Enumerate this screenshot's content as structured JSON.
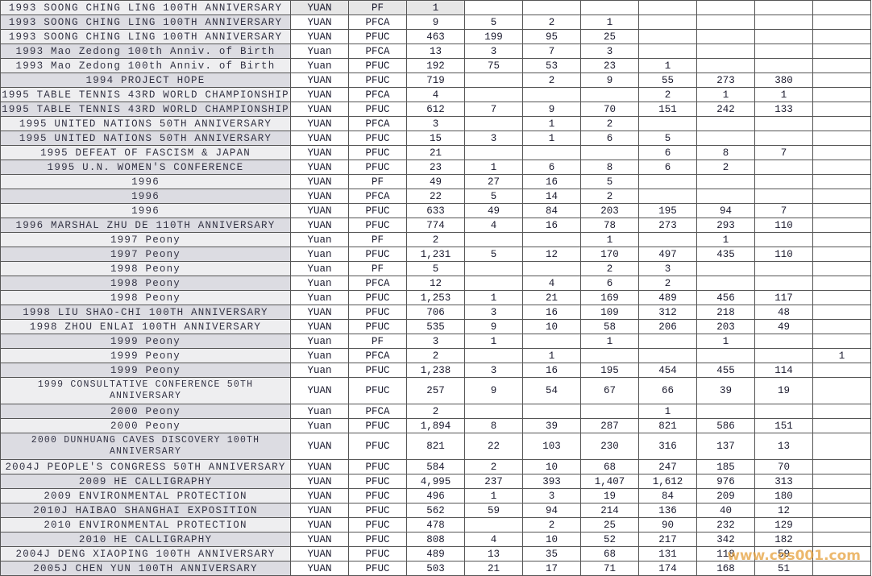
{
  "table": {
    "rows": [
      [
        "1993 SOONG CHING LING 100TH ANNIVERSARY",
        "YUAN",
        "PF",
        1,
        null,
        null,
        null,
        null,
        null,
        null,
        null
      ],
      [
        "1993 SOONG CHING LING 100TH ANNIVERSARY",
        "YUAN",
        "PFCA",
        9,
        5,
        2,
        1,
        null,
        null,
        null,
        null
      ],
      [
        "1993 SOONG CHING LING 100TH ANNIVERSARY",
        "YUAN",
        "PFUC",
        463,
        199,
        95,
        25,
        null,
        null,
        null,
        null
      ],
      [
        "1993 Mao Zedong 100th Anniv. of Birth",
        "Yuan",
        "PFCA",
        13,
        3,
        7,
        3,
        null,
        null,
        null,
        null
      ],
      [
        "1993 Mao Zedong 100th Anniv. of Birth",
        "Yuan",
        "PFUC",
        192,
        75,
        53,
        23,
        1,
        null,
        null,
        null
      ],
      [
        "1994 PROJECT HOPE",
        "YUAN",
        "PFUC",
        719,
        null,
        2,
        9,
        55,
        273,
        380,
        null
      ],
      [
        "1995 TABLE TENNIS 43RD WORLD CHAMPIONSHIP",
        "YUAN",
        "PFCA",
        4,
        null,
        null,
        null,
        2,
        1,
        1,
        null
      ],
      [
        "1995 TABLE TENNIS 43RD WORLD CHAMPIONSHIP",
        "YUAN",
        "PFUC",
        612,
        7,
        9,
        70,
        151,
        242,
        133,
        null
      ],
      [
        "1995 UNITED NATIONS 50TH ANNIVERSARY",
        "YUAN",
        "PFCA",
        3,
        null,
        1,
        2,
        null,
        null,
        null,
        null
      ],
      [
        "1995 UNITED NATIONS 50TH ANNIVERSARY",
        "YUAN",
        "PFUC",
        15,
        3,
        1,
        6,
        5,
        null,
        null,
        null
      ],
      [
        "1995 DEFEAT OF FASCISM & JAPAN",
        "YUAN",
        "PFUC",
        21,
        null,
        null,
        null,
        6,
        8,
        7,
        null
      ],
      [
        "1995 U.N. WOMEN'S CONFERENCE",
        "YUAN",
        "PFUC",
        23,
        1,
        6,
        8,
        6,
        2,
        null,
        null
      ],
      [
        "1996",
        "YUAN",
        "PF",
        49,
        27,
        16,
        5,
        null,
        null,
        null,
        null
      ],
      [
        "1996",
        "YUAN",
        "PFCA",
        22,
        5,
        14,
        2,
        null,
        null,
        null,
        null
      ],
      [
        "1996",
        "YUAN",
        "PFUC",
        633,
        49,
        84,
        203,
        195,
        94,
        7,
        null
      ],
      [
        "1996 MARSHAL ZHU DE 110TH ANNIVERSARY",
        "YUAN",
        "PFUC",
        774,
        4,
        16,
        78,
        273,
        293,
        110,
        null
      ],
      [
        "1997 Peony",
        "Yuan",
        "PF",
        2,
        null,
        null,
        1,
        null,
        1,
        null,
        null
      ],
      [
        "1997 Peony",
        "Yuan",
        "PFUC",
        "1,231",
        5,
        12,
        170,
        497,
        435,
        110,
        null
      ],
      [
        "1998 Peony",
        "Yuan",
        "PF",
        5,
        null,
        null,
        2,
        3,
        null,
        null,
        null
      ],
      [
        "1998 Peony",
        "Yuan",
        "PFCA",
        12,
        null,
        4,
        6,
        2,
        null,
        null,
        null
      ],
      [
        "1998 Peony",
        "Yuan",
        "PFUC",
        "1,253",
        1,
        21,
        169,
        489,
        456,
        117,
        null
      ],
      [
        "1998 LIU SHAO-CHI 100TH ANNIVERSARY",
        "YUAN",
        "PFUC",
        706,
        3,
        16,
        109,
        312,
        218,
        48,
        null
      ],
      [
        "1998 ZHOU ENLAI 100TH ANNIVERSARY",
        "YUAN",
        "PFUC",
        535,
        9,
        10,
        58,
        206,
        203,
        49,
        null
      ],
      [
        "1999 Peony",
        "Yuan",
        "PF",
        3,
        1,
        null,
        1,
        null,
        1,
        null,
        null
      ],
      [
        "1999 Peony",
        "Yuan",
        "PFCA",
        2,
        null,
        1,
        null,
        null,
        null,
        null,
        1
      ],
      [
        "1999 Peony",
        "Yuan",
        "PFUC",
        "1,238",
        3,
        16,
        195,
        454,
        455,
        114,
        null
      ],
      [
        "1999 CONSULTATIVE CONFERENCE 50TH ANNIVERSARY",
        "YUAN",
        "PFUC",
        257,
        9,
        54,
        67,
        66,
        39,
        19,
        null
      ],
      [
        "2000 Peony",
        "Yuan",
        "PFCA",
        2,
        null,
        null,
        null,
        1,
        null,
        null,
        null
      ],
      [
        "2000 Peony",
        "Yuan",
        "PFUC",
        "1,894",
        8,
        39,
        287,
        821,
        586,
        151,
        null
      ],
      [
        "2000 DUNHUANG CAVES DISCOVERY 100TH ANNIVERSARY",
        "YUAN",
        "PFUC",
        821,
        22,
        103,
        230,
        316,
        137,
        13,
        null
      ],
      [
        "2004J PEOPLE'S CONGRESS 50TH ANNIVERSARY",
        "YUAN",
        "PFUC",
        584,
        2,
        10,
        68,
        247,
        185,
        70,
        null
      ],
      [
        "2009 HE CALLIGRAPHY",
        "YUAN",
        "PFUC",
        "4,995",
        237,
        393,
        "1,407",
        "1,612",
        976,
        313,
        null
      ],
      [
        "2009 ENVIRONMENTAL PROTECTION",
        "YUAN",
        "PFUC",
        496,
        1,
        3,
        19,
        84,
        209,
        180,
        null
      ],
      [
        "2010J HAIBAO SHANGHAI EXPOSITION",
        "YUAN",
        "PFUC",
        562,
        59,
        94,
        214,
        136,
        40,
        12,
        null
      ],
      [
        "2010 ENVIRONMENTAL PROTECTION",
        "YUAN",
        "PFUC",
        478,
        null,
        2,
        25,
        90,
        232,
        129,
        null
      ],
      [
        "2010 HE CALLIGRAPHY",
        "YUAN",
        "PFUC",
        808,
        4,
        10,
        52,
        217,
        342,
        182,
        null
      ],
      [
        "2004J DENG XIAOPING 100TH ANNIVERSARY",
        "YUAN",
        "PFUC",
        489,
        13,
        35,
        68,
        131,
        118,
        59,
        null
      ],
      [
        "2005J CHEN YUN 100TH ANNIVERSARY",
        "YUAN",
        "PFUC",
        503,
        21,
        17,
        71,
        174,
        168,
        51,
        null
      ]
    ]
  },
  "watermark": "www.cos001.com"
}
